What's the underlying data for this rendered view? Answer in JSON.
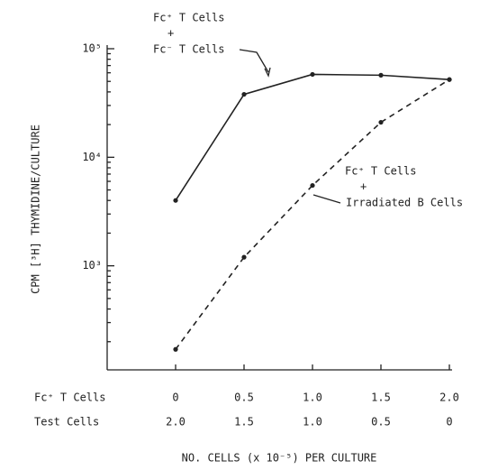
{
  "chart_data": {
    "type": "line",
    "log_y": true,
    "y_label": "CPM [³H] THYMIDINE/CULTURE",
    "x_label": "NO. CELLS (x 10⁻⁵) PER CULTURE",
    "xlim": [
      -0.5,
      2.0
    ],
    "xticks": [
      {
        "value": 0,
        "label": "0"
      },
      {
        "value": 0.5,
        "label": "0.5"
      },
      {
        "value": 1,
        "label": "1.0"
      },
      {
        "value": 1.5,
        "label": "1.5"
      },
      {
        "value": 2,
        "label": "2.0"
      }
    ],
    "x_row_labels": [
      "Fc⁺ T Cells",
      "Test Cells"
    ],
    "x2_tick_labels": [
      "2.0",
      "1.5",
      "1.0",
      "0.5",
      "0"
    ],
    "ylim": [
      110,
      100000
    ],
    "yticks": [
      {
        "value": 1000,
        "label": "10³"
      },
      {
        "value": 10000,
        "label": "10⁴"
      },
      {
        "value": 100000,
        "label": "10⁵"
      }
    ],
    "yminor": [
      200,
      300,
      400,
      500,
      600,
      700,
      800,
      900,
      2000,
      3000,
      4000,
      5000,
      6000,
      7000,
      8000,
      9000,
      20000,
      30000,
      40000,
      50000,
      60000,
      70000,
      80000,
      90000
    ],
    "x": [
      0,
      0.5,
      1.0,
      1.5,
      2.0
    ],
    "series": [
      {
        "color": "#222222",
        "dash": false,
        "values": [
          4000,
          38000,
          58000,
          57000,
          52000
        ]
      },
      {
        "color": "#222222",
        "dash": true,
        "values": [
          170,
          1200,
          5500,
          21000,
          52000
        ]
      }
    ],
    "annotations": [
      {
        "lines": [
          "Fc⁺ T Cells",
          "+",
          "Fc⁻ T Cells"
        ]
      },
      {
        "lines": [
          "Fc⁺ T Cells",
          "+",
          "Irradiated B Cells"
        ]
      }
    ]
  }
}
